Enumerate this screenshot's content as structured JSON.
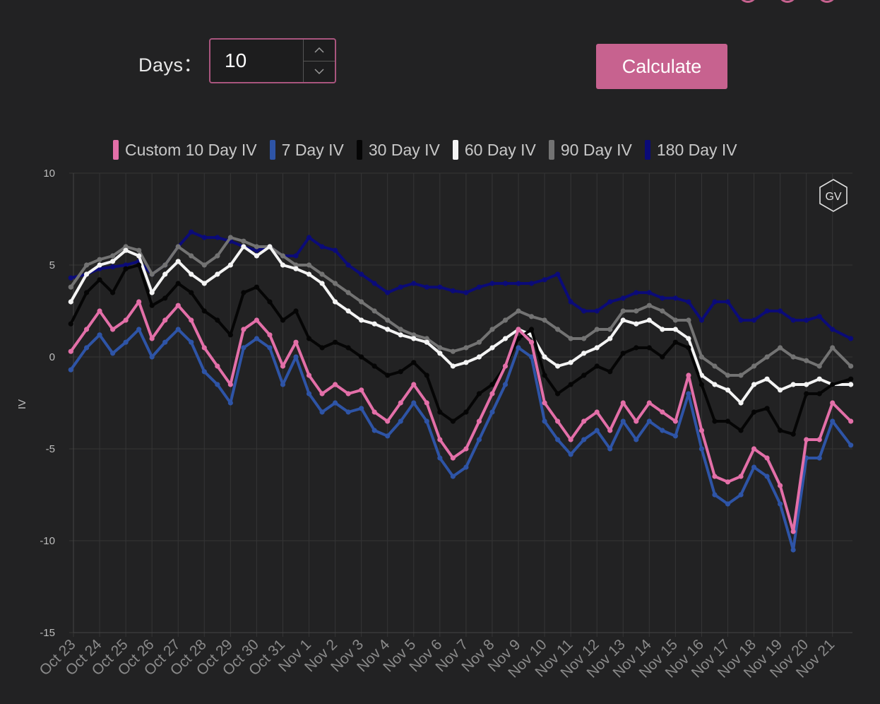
{
  "controls": {
    "days_label": "Days：",
    "days_value": "10",
    "calculate_label": "Calculate",
    "stepper_up_icon": "chevron-up-icon",
    "stepper_down_icon": "chevron-down-icon"
  },
  "logo": {
    "text": "GV"
  },
  "colors": {
    "background": "#222223",
    "accent": "#c7628f",
    "grid": "#353536"
  },
  "chart_data": {
    "type": "line",
    "title": "",
    "xlabel": "",
    "ylabel": "IV",
    "ylim": [
      -15,
      10
    ],
    "yticks": [
      10,
      5,
      0,
      -5,
      -10,
      -15
    ],
    "xlim": [
      0,
      30
    ],
    "x_ticks": [
      {
        "label": "Oct 23",
        "day": 0
      },
      {
        "label": "Oct 24",
        "day": 1
      },
      {
        "label": "Oct 25",
        "day": 2
      },
      {
        "label": "Oct 26",
        "day": 3
      },
      {
        "label": "Oct 27",
        "day": 4
      },
      {
        "label": "Oct 28",
        "day": 5
      },
      {
        "label": "Oct 29",
        "day": 6
      },
      {
        "label": "Oct 30",
        "day": 7
      },
      {
        "label": "Oct 31",
        "day": 8
      },
      {
        "label": "Nov 1",
        "day": 9
      },
      {
        "label": "Nov 2",
        "day": 10
      },
      {
        "label": "Nov 3",
        "day": 11
      },
      {
        "label": "Nov 4",
        "day": 12
      },
      {
        "label": "Nov 5",
        "day": 13
      },
      {
        "label": "Nov 6",
        "day": 14
      },
      {
        "label": "Nov 7",
        "day": 15
      },
      {
        "label": "Nov 8",
        "day": 16
      },
      {
        "label": "Nov 9",
        "day": 17
      },
      {
        "label": "Nov 10",
        "day": 18
      },
      {
        "label": "Nov 11",
        "day": 19
      },
      {
        "label": "Nov 12",
        "day": 20
      },
      {
        "label": "Nov 13",
        "day": 21
      },
      {
        "label": "Nov 14",
        "day": 22
      },
      {
        "label": "Nov 15",
        "day": 23
      },
      {
        "label": "Nov 16",
        "day": 24
      },
      {
        "label": "Nov 17",
        "day": 25
      },
      {
        "label": "Nov 18",
        "day": 26
      },
      {
        "label": "Nov 19",
        "day": 27
      },
      {
        "label": "Nov 20",
        "day": 28
      },
      {
        "label": "Nov 21",
        "day": 29
      }
    ],
    "grid": true,
    "legend_position": "top",
    "x": [
      -0.1,
      0.5,
      1,
      1.5,
      2,
      2.5,
      3,
      3.5,
      4,
      4.5,
      5,
      5.5,
      6,
      6.5,
      7,
      7.5,
      8,
      8.5,
      9,
      9.5,
      10,
      10.5,
      11,
      11.5,
      12,
      12.5,
      13,
      13.5,
      14,
      14.5,
      15,
      15.5,
      16,
      16.5,
      17,
      17.5,
      18,
      18.5,
      19,
      19.5,
      20,
      20.5,
      21,
      21.5,
      22,
      22.5,
      23,
      23.5,
      24,
      24.5,
      25,
      25.5,
      26,
      26.5,
      27,
      27.5,
      28,
      28.5,
      29,
      29.7
    ],
    "series": [
      {
        "name": "Custom 10 Day IV",
        "color": "#e36fa8",
        "values": [
          0.3,
          1.5,
          2.5,
          1.5,
          2.0,
          3.0,
          1.0,
          2.0,
          2.8,
          2.0,
          0.5,
          -0.5,
          -1.5,
          1.5,
          2.0,
          1.2,
          -0.5,
          0.8,
          -1.0,
          -2.0,
          -1.5,
          -2.0,
          -1.8,
          -3.0,
          -3.5,
          -2.5,
          -1.5,
          -2.5,
          -4.5,
          -5.5,
          -5.0,
          -3.5,
          -2.0,
          -0.5,
          1.5,
          0.8,
          -2.5,
          -3.5,
          -4.5,
          -3.5,
          -3.0,
          -4.0,
          -2.5,
          -3.5,
          -2.5,
          -3.0,
          -3.5,
          -1.0,
          -4.0,
          -6.5,
          -6.8,
          -6.5,
          -5.0,
          -5.5,
          -7.0,
          -9.5,
          -4.5,
          -4.5,
          -2.5,
          -3.5
        ]
      },
      {
        "name": "7 Day IV",
        "color": "#2e54a6",
        "values": [
          -0.7,
          0.5,
          1.2,
          0.2,
          0.8,
          1.5,
          0.0,
          0.8,
          1.5,
          0.8,
          -0.8,
          -1.5,
          -2.5,
          0.5,
          1.0,
          0.5,
          -1.5,
          0.0,
          -2.0,
          -3.0,
          -2.5,
          -3.0,
          -2.8,
          -4.0,
          -4.3,
          -3.5,
          -2.5,
          -3.5,
          -5.5,
          -6.5,
          -6.0,
          -4.5,
          -3.0,
          -1.5,
          0.5,
          0.0,
          -3.5,
          -4.5,
          -5.3,
          -4.5,
          -4.0,
          -5.0,
          -3.5,
          -4.5,
          -3.5,
          -4.0,
          -4.3,
          -2.0,
          -5.0,
          -7.5,
          -8.0,
          -7.5,
          -6.0,
          -6.5,
          -8.0,
          -10.5,
          -5.5,
          -5.5,
          -3.5,
          -4.8
        ]
      },
      {
        "name": "30 Day IV",
        "color": "#050505",
        "values": [
          1.8,
          3.5,
          4.2,
          3.5,
          4.8,
          5.0,
          2.8,
          3.2,
          4.0,
          3.5,
          2.5,
          2.0,
          1.2,
          3.5,
          3.8,
          3.0,
          2.0,
          2.5,
          1.0,
          0.5,
          0.8,
          0.5,
          0.0,
          -0.5,
          -1.0,
          -0.8,
          -0.3,
          -1.0,
          -3.0,
          -3.5,
          -3.0,
          -2.0,
          -1.5,
          -0.5,
          1.0,
          1.5,
          -1.0,
          -2.0,
          -1.5,
          -1.0,
          -0.5,
          -0.8,
          0.2,
          0.5,
          0.5,
          0.0,
          0.8,
          0.5,
          -1.5,
          -3.5,
          -3.5,
          -4.0,
          -3.0,
          -2.8,
          -4.0,
          -4.2,
          -2.0,
          -2.0,
          -1.5,
          -1.2
        ]
      },
      {
        "name": "60 Day IV",
        "color": "#f4f4f4",
        "values": [
          3.0,
          4.5,
          5.0,
          5.2,
          5.8,
          5.5,
          3.5,
          4.5,
          5.2,
          4.5,
          4.0,
          4.5,
          5.0,
          6.0,
          5.5,
          6.0,
          5.0,
          4.8,
          4.5,
          4.0,
          3.0,
          2.5,
          2.0,
          1.8,
          1.5,
          1.2,
          1.0,
          0.8,
          0.2,
          -0.5,
          -0.3,
          0.0,
          0.5,
          1.0,
          1.5,
          1.2,
          0.0,
          -0.5,
          -0.3,
          0.2,
          0.5,
          1.0,
          2.0,
          1.8,
          2.0,
          1.5,
          1.5,
          1.0,
          -1.0,
          -1.5,
          -1.8,
          -2.5,
          -1.5,
          -1.2,
          -1.8,
          -1.5,
          -1.5,
          -1.2,
          -1.5,
          -1.5
        ]
      },
      {
        "name": "90 Day IV",
        "color": "#737373",
        "values": [
          3.8,
          5.0,
          5.3,
          5.5,
          6.0,
          5.8,
          4.5,
          5.0,
          6.0,
          5.5,
          5.0,
          5.5,
          6.5,
          6.3,
          6.0,
          6.0,
          5.5,
          5.0,
          5.0,
          4.5,
          4.0,
          3.5,
          3.0,
          2.5,
          2.0,
          1.5,
          1.2,
          1.0,
          0.5,
          0.3,
          0.5,
          0.8,
          1.5,
          2.0,
          2.5,
          2.2,
          2.0,
          1.5,
          1.0,
          1.0,
          1.5,
          1.5,
          2.5,
          2.5,
          2.8,
          2.5,
          2.0,
          2.0,
          0.0,
          -0.5,
          -1.0,
          -1.0,
          -0.5,
          0.0,
          0.5,
          0.0,
          -0.2,
          -0.5,
          0.5,
          -0.5
        ]
      },
      {
        "name": "180 Day IV",
        "color": "#0b0b78",
        "values": [
          4.3,
          4.5,
          4.8,
          4.9,
          5.0,
          5.2,
          4.5,
          5.0,
          6.0,
          6.8,
          6.5,
          6.5,
          6.3,
          6.0,
          5.8,
          6.0,
          5.5,
          5.5,
          6.5,
          6.0,
          5.8,
          5.0,
          4.5,
          4.0,
          3.5,
          3.8,
          4.0,
          3.8,
          3.8,
          3.6,
          3.5,
          3.8,
          4.0,
          4.0,
          4.0,
          4.0,
          4.2,
          4.5,
          3.0,
          2.5,
          2.5,
          3.0,
          3.2,
          3.5,
          3.5,
          3.2,
          3.2,
          3.0,
          2.0,
          3.0,
          3.0,
          2.0,
          2.0,
          2.5,
          2.5,
          2.0,
          2.0,
          2.2,
          1.5,
          1.0
        ]
      }
    ]
  }
}
